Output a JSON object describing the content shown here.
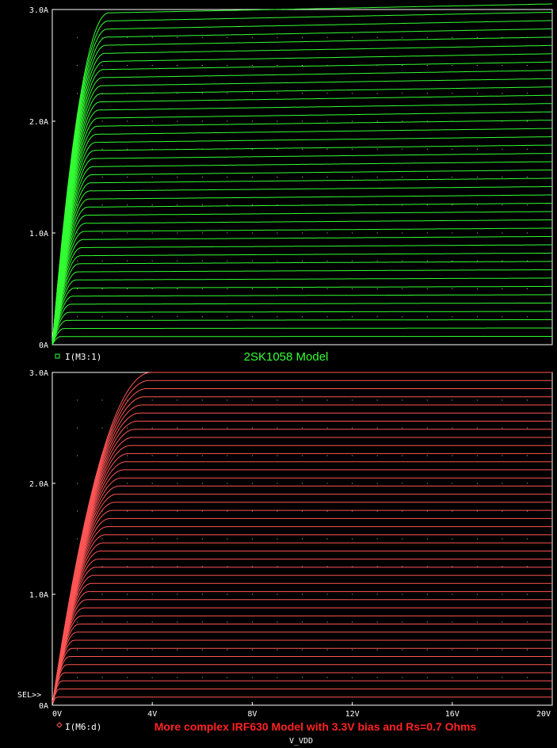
{
  "sel_marker": "SEL>>",
  "x_axis_label": "V_VDD",
  "x_ticks": [
    "0V",
    "4V",
    "8V",
    "12V",
    "16V",
    "20V"
  ],
  "chart_data": [
    {
      "type": "line",
      "title": "2SK1058 Model",
      "legend": "I(M3:1)",
      "legend_marker": "square",
      "color": "#33ff33",
      "xlim": [
        0,
        20
      ],
      "ylim": [
        0,
        3.0
      ],
      "y_ticks": [
        "0A",
        "1.0A",
        "2.0A",
        "3.0A"
      ],
      "grid": "dotted",
      "sweep": {
        "count": 41,
        "saturation_current_min": 0.0,
        "saturation_current_max": 2.97,
        "knee_voltage_at_max": 2.2,
        "slope_at_20V_per_V": 0.0045,
        "note_series": "family of drain curves, one per gate step"
      }
    },
    {
      "type": "line",
      "title": "More complex IRF630 Model with 3.3V bias and Rs=0.7 Ohms",
      "legend": "I(M6:d)",
      "legend_marker": "diamond",
      "color": "#ff5555",
      "xlim": [
        0,
        20
      ],
      "ylim": [
        0,
        3.0
      ],
      "y_ticks": [
        "0A",
        "1.0A",
        "2.0A",
        "3.0A"
      ],
      "grid": "dotted",
      "sweep": {
        "count": 41,
        "saturation_current_min": 0.0,
        "saturation_current_max": 3.0,
        "knee_voltage_at_max": 3.9,
        "slope_at_20V_per_V": 0.0
      }
    }
  ]
}
